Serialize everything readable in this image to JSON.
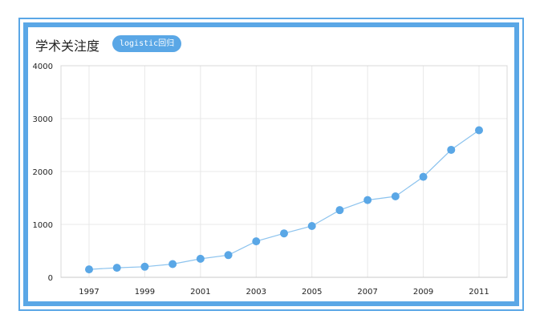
{
  "header": {
    "title": "学术关注度",
    "badge_label": "logistic回归"
  },
  "colors": {
    "accent": "#5aa7e6",
    "line": "#8cc3ee",
    "grid": "#e8e8e8"
  },
  "chart_data": {
    "type": "line",
    "x": [
      1997,
      1998,
      1999,
      2000,
      2001,
      2002,
      2003,
      2004,
      2005,
      2006,
      2007,
      2008,
      2009,
      2010,
      2011
    ],
    "values": [
      150,
      180,
      200,
      250,
      350,
      420,
      680,
      830,
      970,
      1270,
      1460,
      1530,
      1900,
      2410,
      2780
    ],
    "xticks": [
      "1997",
      "1999",
      "2001",
      "2003",
      "2005",
      "2007",
      "2009",
      "2011"
    ],
    "yticks": [
      "0",
      "1000",
      "2000",
      "3000",
      "4000"
    ],
    "ylim": [
      0,
      4000
    ],
    "xlim": [
      1997,
      2011
    ],
    "grid": true
  }
}
